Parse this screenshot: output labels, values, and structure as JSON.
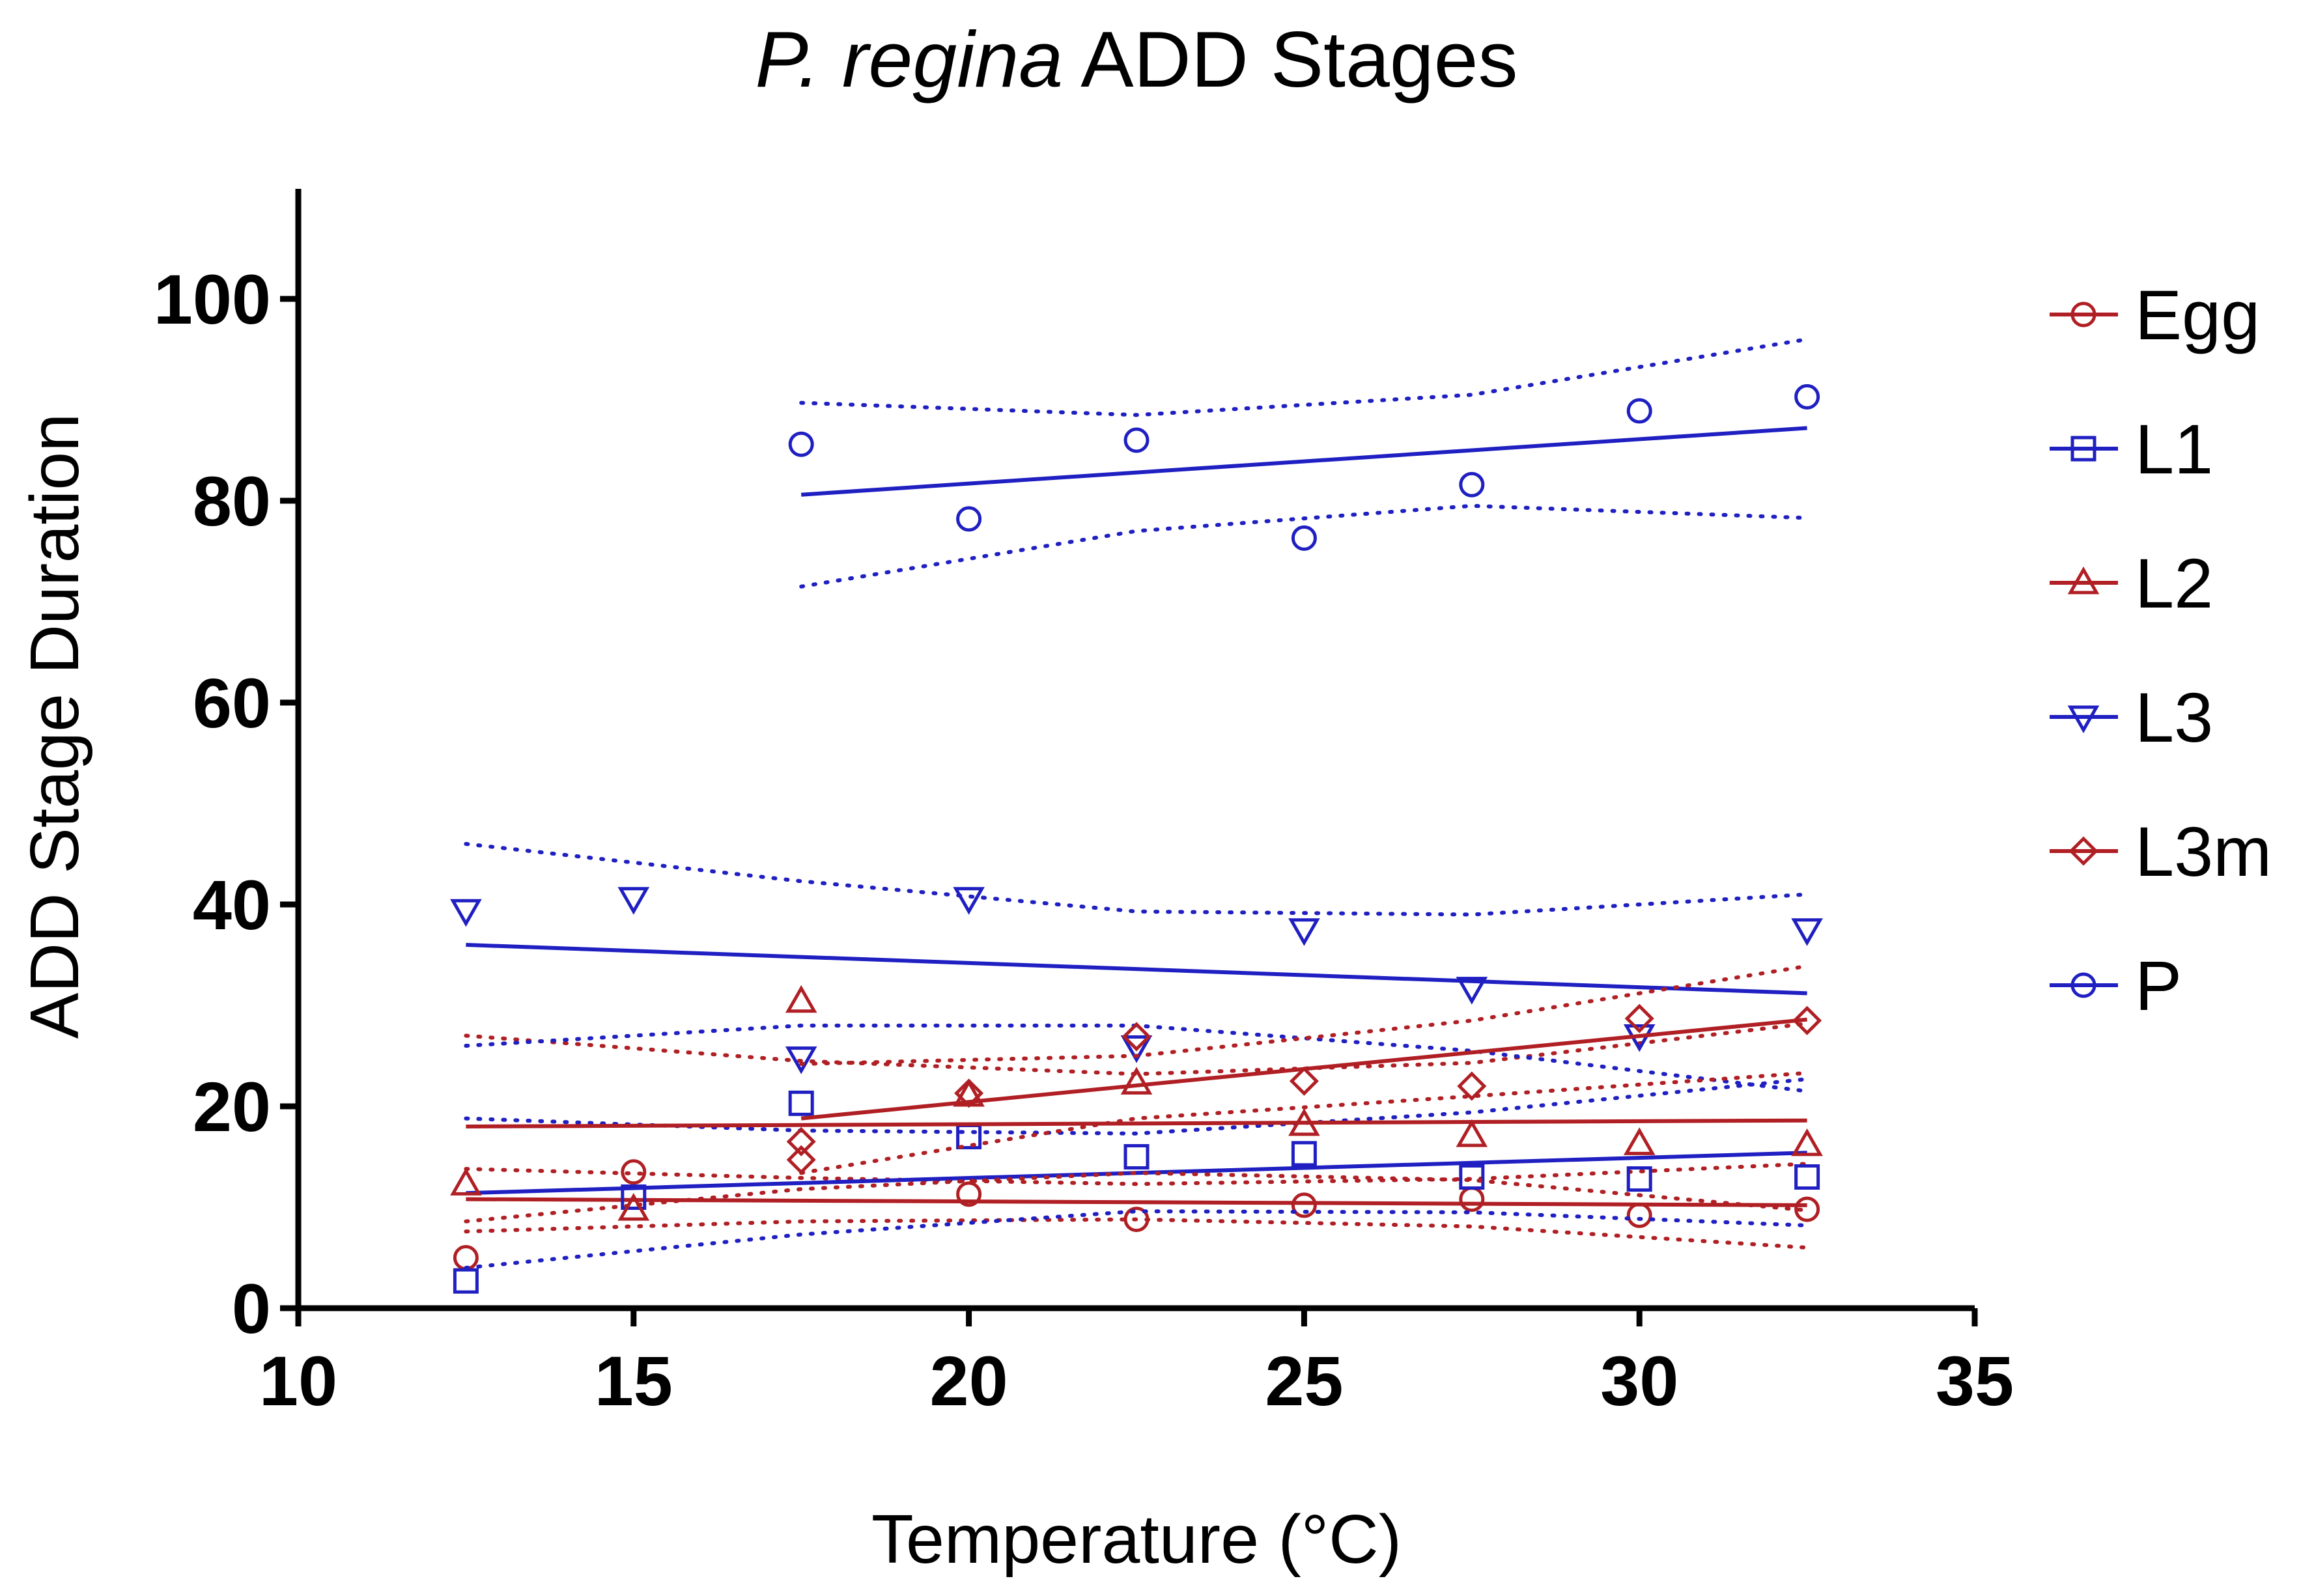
{
  "chart_data": {
    "type": "scatter",
    "title": {
      "italic": "P. regina",
      "rest": " ADD Stages"
    },
    "xlabel": "Temperature (°C)",
    "ylabel": "ADD Stage Duration",
    "xlim": [
      10,
      35
    ],
    "ylim": [
      0,
      110
    ],
    "xticks": [
      10,
      15,
      20,
      25,
      30,
      35
    ],
    "yticks": [
      0,
      20,
      40,
      60,
      80,
      100
    ],
    "legend_position": "right",
    "series": [
      {
        "name": "Egg",
        "color": "#b01f24",
        "marker": "circle",
        "points": [
          [
            12.5,
            5
          ],
          [
            15,
            13.5
          ],
          [
            20,
            11.3
          ],
          [
            22.5,
            8.8
          ],
          [
            25,
            10.2
          ],
          [
            27.5,
            10.8
          ],
          [
            30,
            9.2
          ],
          [
            32.5,
            9.8
          ]
        ],
        "fit": [
          [
            12.5,
            10.8
          ],
          [
            32.5,
            10.2
          ]
        ],
        "ci_upper": [
          [
            12.5,
            13.8
          ],
          [
            17.5,
            12.9
          ],
          [
            22.5,
            12.3
          ],
          [
            27.5,
            12.8
          ],
          [
            32.5,
            14.3
          ]
        ],
        "ci_lower": [
          [
            12.5,
            7.6
          ],
          [
            17.5,
            8.6
          ],
          [
            22.5,
            8.8
          ],
          [
            27.5,
            8.1
          ],
          [
            32.5,
            6.0
          ]
        ]
      },
      {
        "name": "L1",
        "color": "#1f1fc2",
        "marker": "square",
        "points": [
          [
            12.5,
            2.7
          ],
          [
            15,
            11.0
          ],
          [
            17.5,
            20.3
          ],
          [
            20,
            17.0
          ],
          [
            22.5,
            15.0
          ],
          [
            25,
            15.3
          ],
          [
            27.5,
            13.0
          ],
          [
            30,
            12.8
          ],
          [
            32.5,
            13.0
          ]
        ],
        "fit": [
          [
            12.5,
            11.4
          ],
          [
            32.5,
            15.4
          ]
        ],
        "ci_upper": [
          [
            12.5,
            18.8
          ],
          [
            17.5,
            17.6
          ],
          [
            22.5,
            17.3
          ],
          [
            27.5,
            19.4
          ],
          [
            32.5,
            22.7
          ]
        ],
        "ci_lower": [
          [
            12.5,
            4.0
          ],
          [
            17.5,
            7.3
          ],
          [
            22.5,
            9.6
          ],
          [
            27.5,
            9.5
          ],
          [
            32.5,
            8.2
          ]
        ]
      },
      {
        "name": "L2",
        "color": "#b01f24",
        "marker": "triangle-up",
        "points": [
          [
            12.5,
            12.3
          ],
          [
            15,
            9.8
          ],
          [
            17.5,
            30.4
          ],
          [
            20,
            21.1
          ],
          [
            22.5,
            22.3
          ],
          [
            25,
            18.2
          ],
          [
            27.5,
            17.1
          ],
          [
            30,
            16.3
          ],
          [
            32.5,
            16.2
          ]
        ],
        "fit": [
          [
            12.5,
            18.0
          ],
          [
            32.5,
            18.6
          ]
        ],
        "ci_upper": [
          [
            12.5,
            27.0
          ],
          [
            17.5,
            24.5
          ],
          [
            22.5,
            23.2
          ],
          [
            27.5,
            24.3
          ],
          [
            32.5,
            28.2
          ]
        ],
        "ci_lower": [
          [
            12.5,
            8.6
          ],
          [
            17.5,
            11.8
          ],
          [
            22.5,
            13.4
          ],
          [
            27.5,
            12.7
          ],
          [
            32.5,
            9.7
          ]
        ]
      },
      {
        "name": "L3",
        "color": "#1f1fc2",
        "marker": "triangle-down",
        "points": [
          [
            12.5,
            39.4
          ],
          [
            15,
            40.6
          ],
          [
            17.5,
            24.8
          ],
          [
            20,
            40.6
          ],
          [
            22.5,
            25.9
          ],
          [
            25,
            37.5
          ],
          [
            27.5,
            31.7
          ],
          [
            30,
            27.0
          ],
          [
            32.5,
            37.5
          ]
        ],
        "fit": [
          [
            12.5,
            36.0
          ],
          [
            32.5,
            31.2
          ]
        ],
        "ci_upper": [
          [
            12.5,
            46.0
          ],
          [
            17.5,
            42.3
          ],
          [
            22.5,
            39.3
          ],
          [
            27.5,
            39.0
          ],
          [
            32.5,
            41.0
          ]
        ],
        "ci_lower": [
          [
            12.5,
            26.0
          ],
          [
            17.5,
            28.0
          ],
          [
            22.5,
            28.0
          ],
          [
            27.5,
            25.5
          ],
          [
            32.5,
            21.5
          ]
        ]
      },
      {
        "name": "L3m",
        "color": "#b01f24",
        "marker": "diamond",
        "points": [
          [
            17.5,
            16.5
          ],
          [
            17.5,
            14.7
          ],
          [
            20,
            21.3
          ],
          [
            22.5,
            26.9
          ],
          [
            25,
            22.5
          ],
          [
            27.5,
            22.0
          ],
          [
            30,
            28.7
          ],
          [
            32.5,
            28.5
          ]
        ],
        "fit": [
          [
            17.5,
            18.8
          ],
          [
            32.5,
            28.6
          ]
        ],
        "ci_upper": [
          [
            17.5,
            24.2
          ],
          [
            22.5,
            25.0
          ],
          [
            27.5,
            28.5
          ],
          [
            32.5,
            33.9
          ]
        ],
        "ci_lower": [
          [
            17.5,
            13.4
          ],
          [
            22.5,
            18.8
          ],
          [
            27.5,
            21.0
          ],
          [
            32.5,
            23.3
          ]
        ]
      },
      {
        "name": "P",
        "color": "#1f1fc2",
        "marker": "circle",
        "points": [
          [
            17.5,
            85.6
          ],
          [
            20,
            78.2
          ],
          [
            22.5,
            86.0
          ],
          [
            25,
            76.3
          ],
          [
            27.5,
            81.6
          ],
          [
            30,
            88.9
          ],
          [
            32.5,
            90.3
          ]
        ],
        "fit": [
          [
            17.5,
            80.6
          ],
          [
            32.5,
            87.2
          ]
        ],
        "ci_upper": [
          [
            17.5,
            89.7
          ],
          [
            22.5,
            88.5
          ],
          [
            27.5,
            90.5
          ],
          [
            32.5,
            96.0
          ]
        ],
        "ci_lower": [
          [
            17.5,
            71.5
          ],
          [
            22.5,
            77.0
          ],
          [
            27.5,
            79.5
          ],
          [
            32.5,
            78.3
          ]
        ]
      }
    ]
  }
}
